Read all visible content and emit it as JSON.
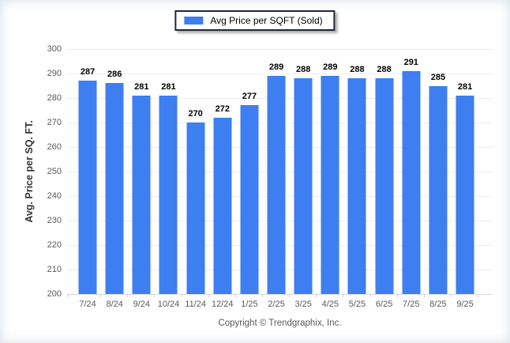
{
  "legend": {
    "label": "Avg Price per SQFT (Sold)"
  },
  "y_axis_title": "Avg. Price per SQ. FT.",
  "footer": {
    "copyright": "Copyright © Trendgraphix, Inc."
  },
  "colors": {
    "bar": "#3D7EF1",
    "grid": "#ededed",
    "baseline": "#d8d8d8",
    "axis_text": "#595959",
    "value_label": "#000000",
    "legend_border": "#1e2a38"
  },
  "chart_data": {
    "type": "bar",
    "title": "",
    "series_name": "Avg Price per SQFT (Sold)",
    "categories": [
      "7/24",
      "8/24",
      "9/24",
      "10/24",
      "11/24",
      "12/24",
      "1/25",
      "2/25",
      "3/25",
      "4/25",
      "5/25",
      "6/25",
      "7/25",
      "8/25",
      "9/25"
    ],
    "values": [
      287,
      286,
      281,
      281,
      270,
      272,
      277,
      289,
      288,
      289,
      288,
      288,
      291,
      285,
      281
    ],
    "xlabel": "",
    "ylabel": "Avg. Price per SQ. FT.",
    "ylim": [
      200,
      300
    ],
    "y_ticks": [
      300,
      290,
      280,
      270,
      260,
      250,
      240,
      230,
      220,
      210,
      200
    ],
    "grid": true,
    "legend_position": "top-center",
    "bar_color": "#3D7EF1"
  }
}
